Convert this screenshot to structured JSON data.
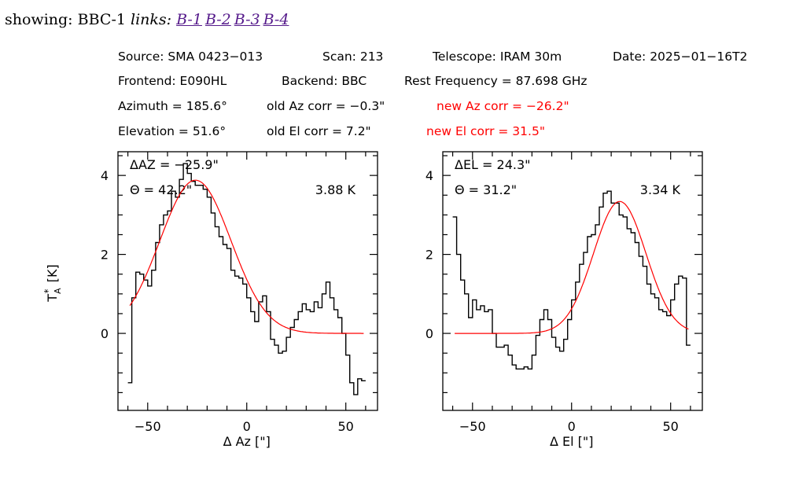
{
  "header": {
    "showing_label": "showing:",
    "showing_value": "BBC-1",
    "links_label": "links:",
    "links": [
      "B-1",
      "B-2",
      "B-3",
      "B-4"
    ]
  },
  "info": {
    "row1": [
      "Source: SMA 0423−013",
      "Scan: 213",
      "Telescope: IRAM 30m",
      "Date: 2025−01−16T2"
    ],
    "row2": [
      "Frontend: E090HL",
      "Backend: BBC",
      "Rest Frequency = 87.698 GHz"
    ],
    "row3": [
      "Azimuth = 185.6°",
      "old Az corr = −0.3\"",
      "new Az corr = −26.2\""
    ],
    "row4": [
      "Elevation = 51.6°",
      "old El  corr = 7.2\"",
      "new El  corr = 31.5\""
    ],
    "highlight_color": "#ff0000"
  },
  "chart_data": [
    {
      "type": "line",
      "title": "",
      "xlabel": "Δ Az [\"]",
      "ylabel": "T*A [K]",
      "xlim": [
        -65,
        66
      ],
      "ylim": [
        -1.95,
        4.6
      ],
      "xticks": [
        -50,
        0,
        50
      ],
      "xtick_labels": [
        "−50",
        "0",
        "50"
      ],
      "yticks": [
        0,
        2,
        4
      ],
      "ytick_labels": [
        "0",
        "2",
        "4"
      ],
      "annotations": [
        "ΔAZ = −25.9\"",
        "Θ = 42.2\"",
        "3.88 K"
      ],
      "series": [
        {
          "name": "data",
          "style": "step",
          "color": "#000000",
          "x": [
            -59,
            -57,
            -55,
            -53,
            -51,
            -49,
            -47,
            -45,
            -43,
            -41,
            -39,
            -37,
            -35,
            -33,
            -31,
            -29,
            -27,
            -25,
            -23,
            -21,
            -19,
            -17,
            -15,
            -13,
            -11,
            -9,
            -7,
            -5,
            -3,
            -1,
            1,
            3,
            5,
            7,
            9,
            11,
            13,
            15,
            17,
            19,
            21,
            23,
            25,
            27,
            29,
            31,
            33,
            35,
            37,
            39,
            41,
            43,
            45,
            47,
            49,
            51,
            53,
            55,
            57,
            59
          ],
          "y": [
            -1.25,
            0.9,
            1.55,
            1.5,
            1.35,
            1.2,
            1.6,
            2.3,
            2.75,
            3.0,
            3.1,
            3.6,
            3.45,
            3.9,
            4.3,
            4.05,
            3.85,
            3.75,
            3.75,
            3.65,
            3.45,
            3.05,
            2.7,
            2.45,
            2.25,
            2.15,
            1.6,
            1.45,
            1.4,
            1.25,
            0.9,
            0.55,
            0.3,
            0.8,
            0.95,
            0.55,
            -0.15,
            -0.3,
            -0.5,
            -0.45,
            -0.1,
            0.15,
            0.35,
            0.55,
            0.75,
            0.6,
            0.55,
            0.8,
            0.65,
            1.0,
            1.3,
            0.9,
            0.6,
            0.4,
            0.0,
            -0.55,
            -1.25,
            -1.55,
            -1.15,
            -1.2
          ]
        },
        {
          "name": "gaussian fit",
          "style": "line",
          "color": "#ff0000",
          "amplitude": 3.88,
          "center": -25.9,
          "fwhm": 42.2,
          "x_range": [
            -59,
            59
          ]
        }
      ]
    },
    {
      "type": "line",
      "title": "",
      "xlabel": "Δ El [\"]",
      "ylabel": "",
      "xlim": [
        -65,
        66
      ],
      "ylim": [
        -1.95,
        4.6
      ],
      "xticks": [
        -50,
        0,
        50
      ],
      "xtick_labels": [
        "−50",
        "0",
        "50"
      ],
      "yticks": [
        0,
        2,
        4
      ],
      "ytick_labels": [
        "0",
        "2",
        "4"
      ],
      "annotations": [
        "ΔEL = 24.3\"",
        "Θ = 31.2\"",
        "3.34 K"
      ],
      "series": [
        {
          "name": "data",
          "style": "step",
          "color": "#000000",
          "x": [
            -59,
            -57,
            -55,
            -53,
            -51,
            -49,
            -47,
            -45,
            -43,
            -41,
            -39,
            -37,
            -35,
            -33,
            -31,
            -29,
            -27,
            -25,
            -23,
            -21,
            -19,
            -17,
            -15,
            -13,
            -11,
            -9,
            -7,
            -5,
            -3,
            -1,
            1,
            3,
            5,
            7,
            9,
            11,
            13,
            15,
            17,
            19,
            21,
            23,
            25,
            27,
            29,
            31,
            33,
            35,
            37,
            39,
            41,
            43,
            45,
            47,
            49,
            51,
            53,
            55,
            57,
            59
          ],
          "y": [
            2.95,
            2.0,
            1.35,
            1.0,
            0.4,
            0.85,
            0.6,
            0.7,
            0.55,
            0.6,
            0.0,
            -0.35,
            -0.35,
            -0.3,
            -0.55,
            -0.8,
            -0.9,
            -0.9,
            -0.85,
            -0.9,
            -0.55,
            -0.05,
            0.35,
            0.6,
            0.35,
            -0.1,
            -0.35,
            -0.45,
            -0.15,
            0.35,
            0.85,
            1.3,
            1.75,
            2.05,
            2.45,
            2.5,
            2.75,
            3.2,
            3.55,
            3.6,
            3.3,
            3.3,
            3.0,
            2.95,
            2.65,
            2.55,
            2.3,
            1.95,
            1.7,
            1.25,
            1.0,
            0.9,
            0.6,
            0.55,
            0.45,
            0.85,
            1.25,
            1.45,
            1.4,
            -0.3
          ]
        },
        {
          "name": "gaussian fit",
          "style": "line",
          "color": "#ff0000",
          "amplitude": 3.34,
          "center": 24.3,
          "fwhm": 31.2,
          "x_range": [
            -59,
            59
          ]
        }
      ]
    }
  ]
}
